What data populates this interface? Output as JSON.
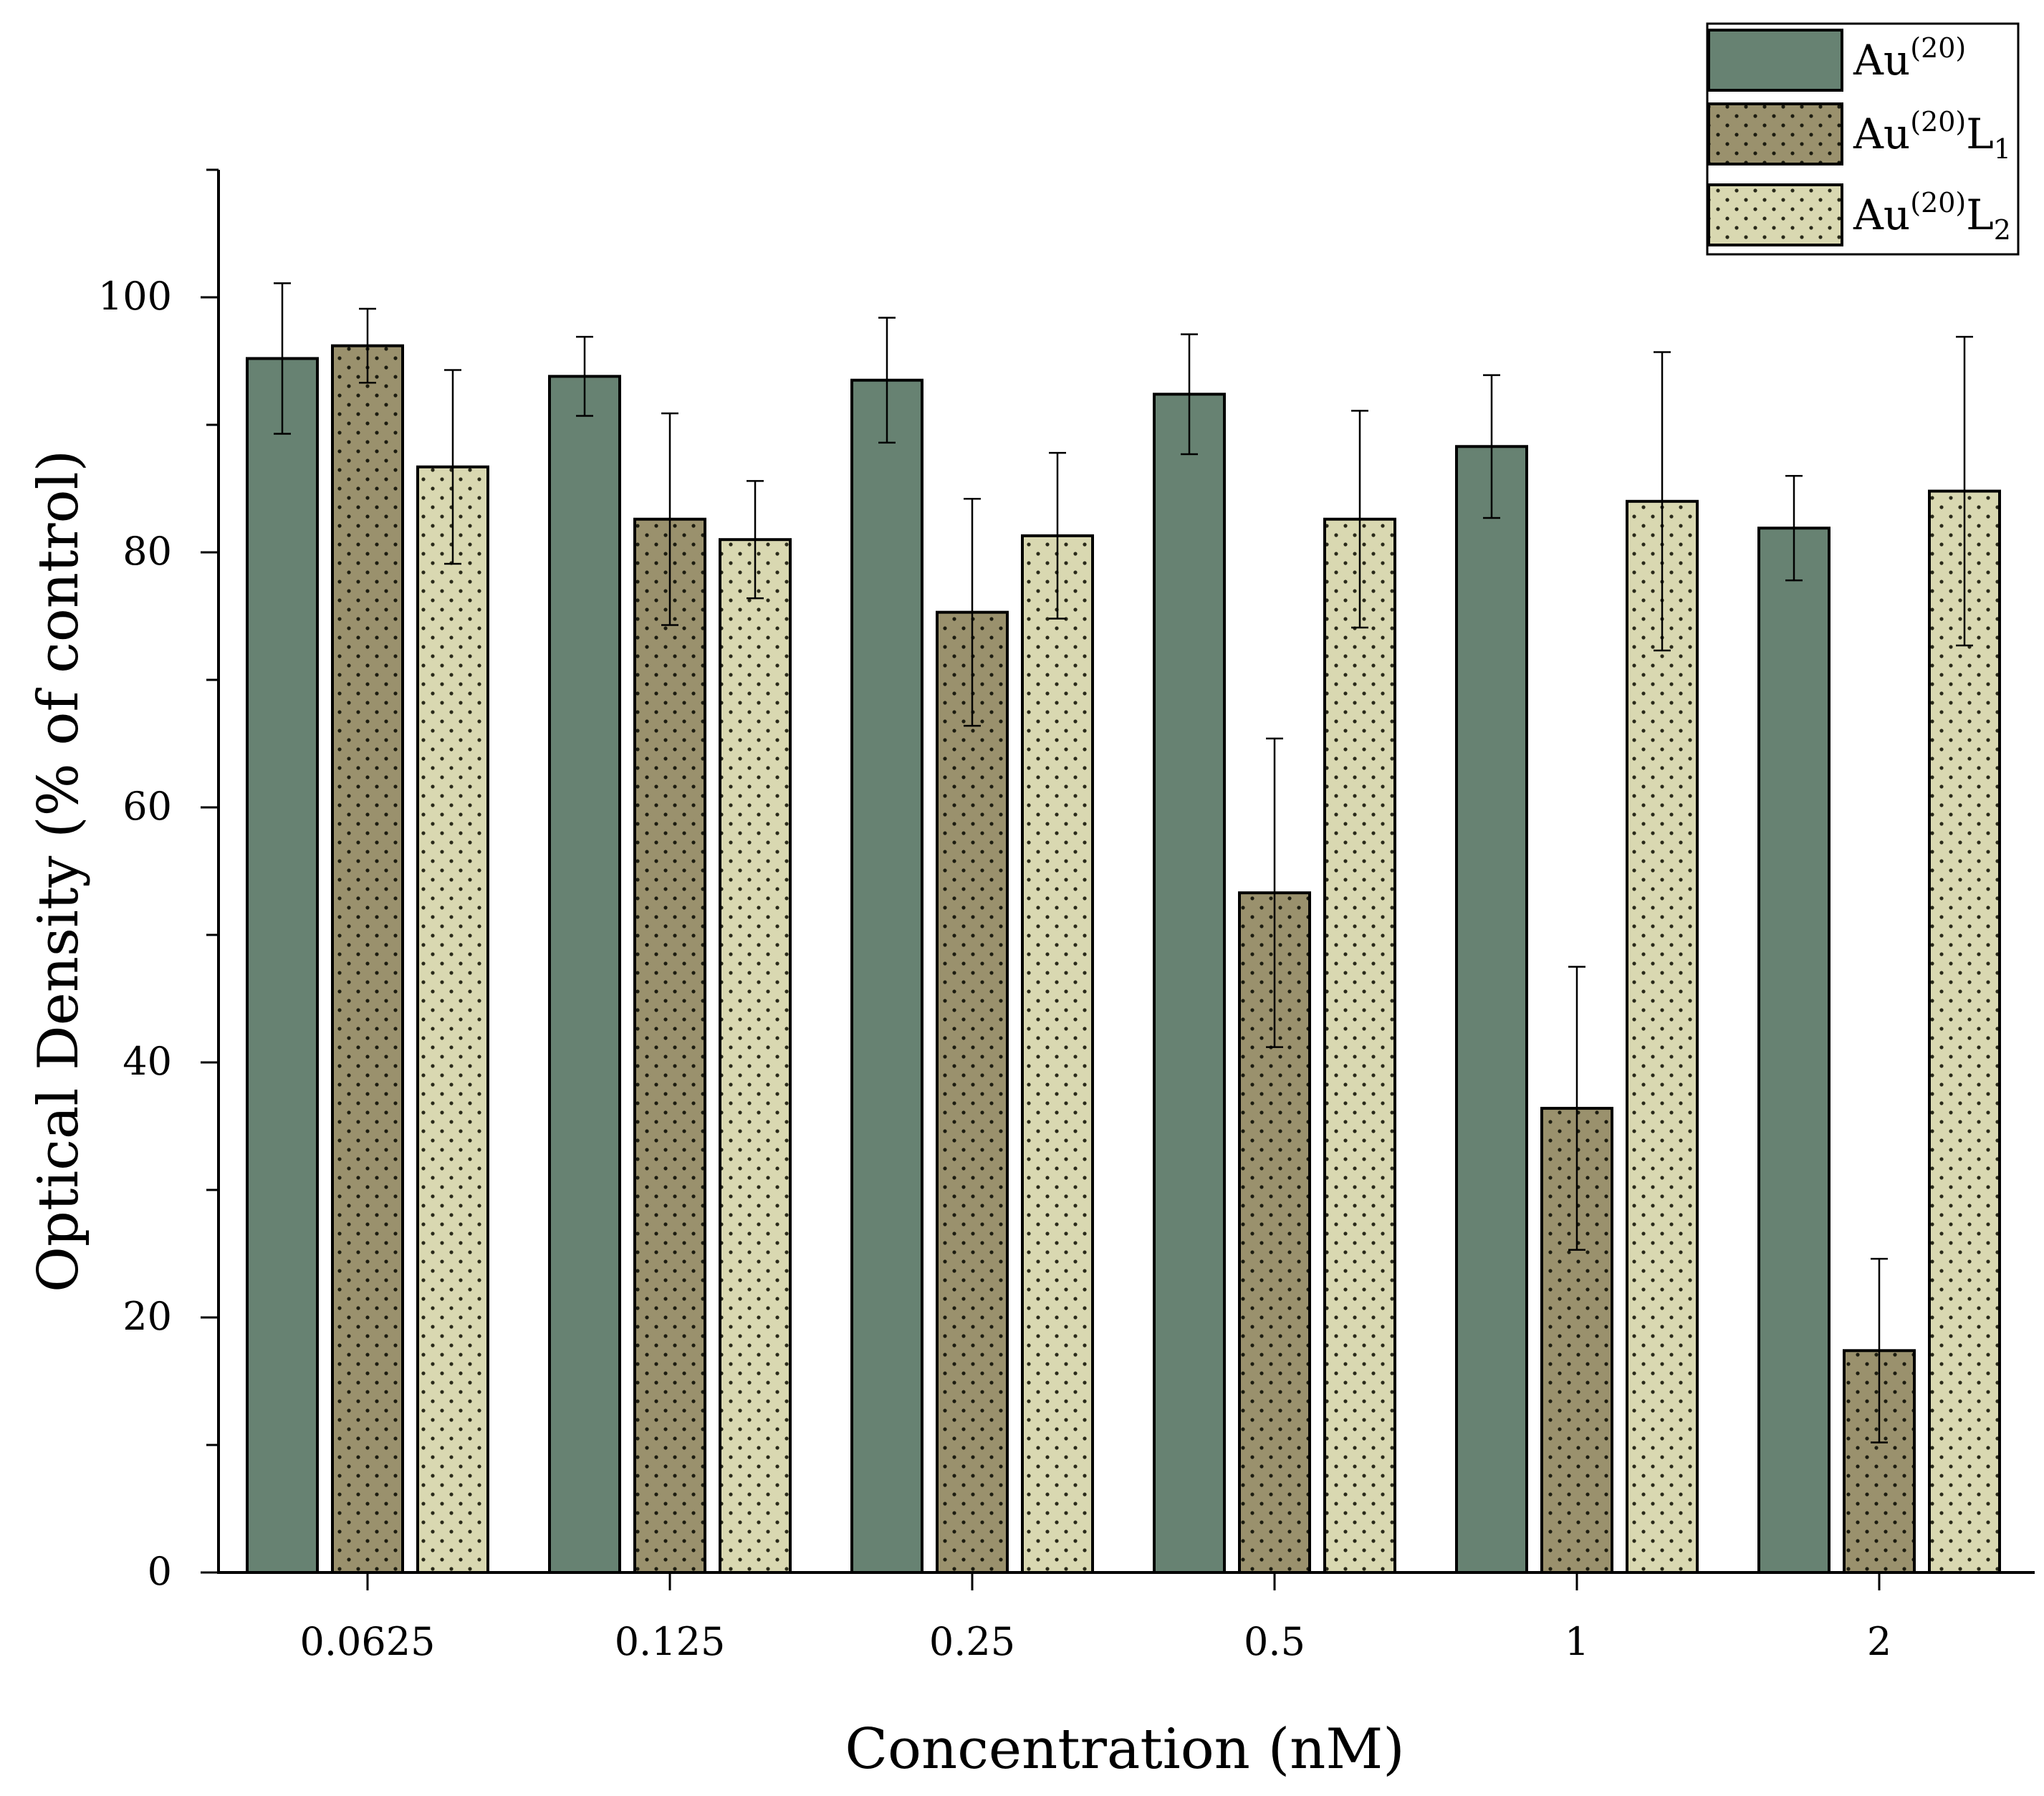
{
  "chart_data": {
    "type": "bar",
    "title": "",
    "xlabel": "Concentration (nM)",
    "ylabel": "Optical Density (% of control)",
    "categories": [
      "0.0625",
      "0.125",
      "0.25",
      "0.5",
      "1",
      "2"
    ],
    "ylim": [
      0,
      110
    ],
    "yticks": [
      0,
      20,
      40,
      60,
      80,
      100
    ],
    "legend_position": "top-right",
    "series": [
      {
        "name": "Au",
        "superscript": "(20)",
        "subscript": "",
        "color": "#678272",
        "pattern": "none",
        "values": [
          95.2,
          93.8,
          93.5,
          92.4,
          88.3,
          81.9
        ],
        "errors": [
          5.9,
          3.1,
          4.9,
          4.7,
          5.6,
          4.1
        ]
      },
      {
        "name": "AuL",
        "superscript": "(20)",
        "subscript": "1",
        "color": "#9a916d",
        "pattern": "dense-dots",
        "values": [
          96.2,
          82.6,
          75.3,
          53.3,
          36.4,
          17.4
        ],
        "errors": [
          2.9,
          8.3,
          8.9,
          12.1,
          11.1,
          7.2
        ]
      },
      {
        "name": "AuL",
        "superscript": "(20)",
        "subscript": "2",
        "color": "#d9d8b1",
        "pattern": "light-dots",
        "values": [
          86.7,
          81.0,
          81.3,
          82.6,
          84.0,
          84.8
        ],
        "errors": [
          7.6,
          4.6,
          6.5,
          8.5,
          11.7,
          12.1
        ]
      }
    ]
  }
}
